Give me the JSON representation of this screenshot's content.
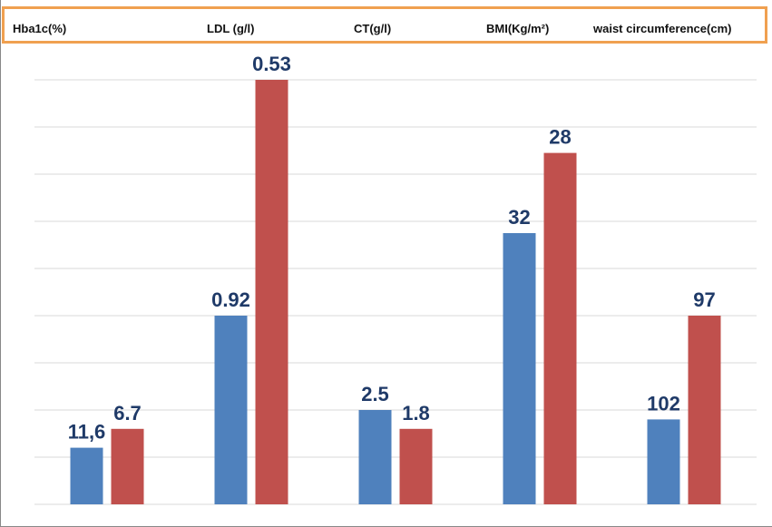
{
  "chart_data": {
    "type": "bar",
    "categories": [
      "Hba1c(%)",
      "LDL (g/l)",
      "CT(g/l)",
      "BMI(Kg/m²)",
      "waist circumference(cm)"
    ],
    "series": [
      {
        "color": "#4f81bd",
        "values": [
          1.2,
          4.0,
          2.0,
          5.75,
          1.8
        ],
        "labels": [
          "11,6",
          "0.92",
          "2.5",
          "32",
          "102"
        ]
      },
      {
        "color": "#c0504d",
        "values": [
          1.6,
          9.0,
          1.6,
          7.45,
          4.0
        ],
        "labels": [
          "6.7",
          "0.53",
          "1.8",
          "28",
          "97"
        ]
      }
    ],
    "ylim": [
      0,
      9.6
    ],
    "grid": true,
    "legend": "none",
    "title": "",
    "xlabel": "",
    "ylabel": ""
  },
  "colors": {
    "header_border": "#f0a050",
    "value_label": "#1f3a68",
    "gridline": "#d9d9d9"
  }
}
